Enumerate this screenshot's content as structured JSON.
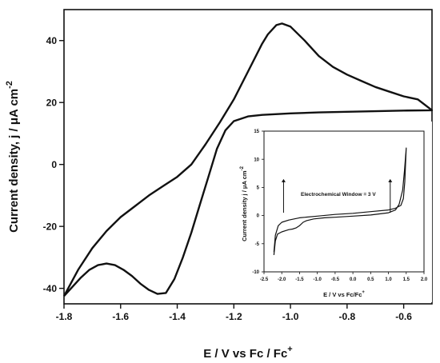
{
  "chart_data": [
    {
      "type": "line",
      "xlabel": "E / V vs Fc / Fc",
      "xlabel_sup": "+",
      "ylabel": "Current density, j / μA cm",
      "ylabel_sup": "-2",
      "xlim": [
        -1.8,
        -0.5
      ],
      "ylim": [
        -45,
        50
      ],
      "x_ticks": [
        -1.8,
        -1.6,
        -1.4,
        -1.2,
        -1.0,
        -0.8,
        -0.6
      ],
      "y_ticks": [
        -40,
        -20,
        0,
        20,
        40
      ],
      "x_tick_labels": [
        "-1.8",
        "-1.6",
        "-1.4",
        "-1.2",
        "-1.0",
        "-0.8",
        "-0.6"
      ],
      "y_tick_labels": [
        "-40",
        "-20",
        "0",
        "20",
        "40"
      ],
      "series": [
        {
          "values": [
            [
              -1.8,
              -42.5
            ],
            [
              -1.77,
              -39.5
            ],
            [
              -1.74,
              -36.5
            ],
            [
              -1.71,
              -34
            ],
            [
              -1.68,
              -32.5
            ],
            [
              -1.65,
              -32
            ],
            [
              -1.62,
              -32.5
            ],
            [
              -1.59,
              -34
            ],
            [
              -1.56,
              -36
            ],
            [
              -1.53,
              -38.5
            ],
            [
              -1.5,
              -40.5
            ],
            [
              -1.47,
              -41.8
            ],
            [
              -1.44,
              -41.5
            ],
            [
              -1.41,
              -37
            ],
            [
              -1.38,
              -30
            ],
            [
              -1.35,
              -22
            ],
            [
              -1.32,
              -13
            ],
            [
              -1.29,
              -4
            ],
            [
              -1.26,
              5
            ],
            [
              -1.23,
              11
            ],
            [
              -1.2,
              14
            ],
            [
              -1.15,
              15.5
            ],
            [
              -1.1,
              16
            ],
            [
              -1.0,
              16.5
            ],
            [
              -0.9,
              16.8
            ],
            [
              -0.8,
              17
            ],
            [
              -0.7,
              17.2
            ],
            [
              -0.6,
              17.4
            ],
            [
              -0.5,
              17.5
            ],
            [
              -0.55,
              21
            ],
            [
              -0.6,
              22
            ],
            [
              -0.65,
              23.5
            ],
            [
              -0.7,
              25
            ],
            [
              -0.75,
              27
            ],
            [
              -0.8,
              29
            ],
            [
              -0.85,
              31.5
            ],
            [
              -0.9,
              35
            ],
            [
              -0.95,
              40
            ],
            [
              -1.0,
              44.5
            ],
            [
              -1.03,
              45.5
            ],
            [
              -1.05,
              45
            ],
            [
              -1.08,
              42
            ],
            [
              -1.1,
              39
            ],
            [
              -1.15,
              30
            ],
            [
              -1.2,
              21
            ],
            [
              -1.25,
              13.5
            ],
            [
              -1.3,
              6.5
            ],
            [
              -1.35,
              0
            ],
            [
              -1.4,
              -4
            ],
            [
              -1.45,
              -7
            ],
            [
              -1.5,
              -10
            ],
            [
              -1.55,
              -13.5
            ],
            [
              -1.6,
              -17
            ],
            [
              -1.65,
              -21.5
            ],
            [
              -1.7,
              -27
            ],
            [
              -1.75,
              -34
            ],
            [
              -1.8,
              -42.5
            ]
          ]
        }
      ]
    },
    {
      "type": "line",
      "inset": true,
      "xlabel": "E / V vs Fc/Fc",
      "xlabel_sup": "+",
      "ylabel": "Current density j / μA cm",
      "ylabel_sup": "-2",
      "xlim": [
        -2.5,
        2.0
      ],
      "ylim": [
        -10,
        15
      ],
      "x_ticks": [
        -2.5,
        -2.0,
        -1.5,
        -1.0,
        -0.5,
        0.0,
        0.5,
        1.0,
        1.5,
        2.0
      ],
      "y_ticks": [
        -10,
        -5,
        0,
        5,
        10,
        15
      ],
      "x_tick_labels": [
        "-2.5",
        "-2.0",
        "-1.5",
        "-1.0",
        "-0.5",
        "0.0",
        "0.5",
        "1.0",
        "1.5",
        "2.0"
      ],
      "y_tick_labels": [
        "-10",
        "-5",
        "0",
        "5",
        "10",
        "15"
      ],
      "annotation": "Electrochemical Window = 3 V",
      "arrows_at_x": [
        -1.95,
        1.05
      ],
      "series": [
        {
          "values": [
            [
              -2.22,
              -7.0
            ],
            [
              -2.18,
              -4.5
            ],
            [
              -2.12,
              -3.3
            ],
            [
              -2.0,
              -2.9
            ],
            [
              -1.9,
              -2.7
            ],
            [
              -1.8,
              -2.5
            ],
            [
              -1.7,
              -2.4
            ],
            [
              -1.6,
              -2.2
            ],
            [
              -1.5,
              -1.8
            ],
            [
              -1.4,
              -1.2
            ],
            [
              -1.3,
              -0.9
            ],
            [
              -1.1,
              -0.6
            ],
            [
              -0.8,
              -0.4
            ],
            [
              -0.5,
              -0.3
            ],
            [
              0.0,
              -0.1
            ],
            [
              0.5,
              0.1
            ],
            [
              1.0,
              0.5
            ],
            [
              1.2,
              1.0
            ],
            [
              1.3,
              2.0
            ],
            [
              1.4,
              4.5
            ],
            [
              1.45,
              8.0
            ],
            [
              1.5,
              12.0
            ],
            [
              1.46,
              6.0
            ],
            [
              1.42,
              3.0
            ],
            [
              1.35,
              1.8
            ],
            [
              1.2,
              1.3
            ],
            [
              1.0,
              1.0
            ],
            [
              0.5,
              0.7
            ],
            [
              0.0,
              0.4
            ],
            [
              -0.5,
              0.2
            ],
            [
              -1.0,
              -0.1
            ],
            [
              -1.5,
              -0.4
            ],
            [
              -1.8,
              -0.8
            ],
            [
              -2.0,
              -1.2
            ],
            [
              -2.1,
              -1.8
            ],
            [
              -2.18,
              -3.5
            ],
            [
              -2.22,
              -6.5
            ]
          ]
        }
      ]
    }
  ]
}
